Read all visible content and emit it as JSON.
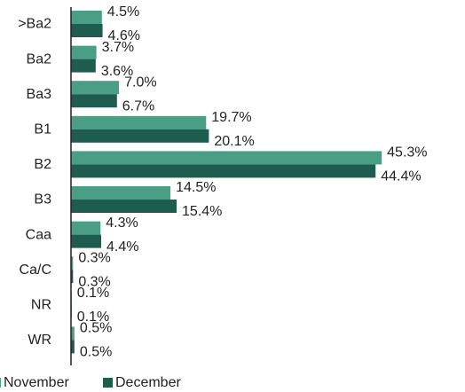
{
  "chart_data": {
    "type": "bar",
    "orientation": "horizontal",
    "categories": [
      ">Ba2",
      "Ba2",
      "Ba3",
      "B1",
      "B2",
      "B3",
      "Caa",
      "Ca/C",
      "NR",
      "WR"
    ],
    "series": [
      {
        "name": "November",
        "color": "#4a9e86",
        "values": [
          4.5,
          3.7,
          7.0,
          19.7,
          45.3,
          14.5,
          4.3,
          0.3,
          0.1,
          0.5
        ],
        "value_labels": [
          "4.5%",
          "3.7%",
          "7.0%",
          "19.7%",
          "45.3%",
          "14.5%",
          "4.3%",
          "0.3%",
          "0.1%",
          "0.5%"
        ]
      },
      {
        "name": "December",
        "color": "#1e5c50",
        "values": [
          4.6,
          3.6,
          6.7,
          20.1,
          44.4,
          15.4,
          4.4,
          0.3,
          0.1,
          0.5
        ],
        "value_labels": [
          "4.6%",
          "3.6%",
          "6.7%",
          "20.1%",
          "44.4%",
          "15.4%",
          "4.4%",
          "0.3%",
          "0.1%",
          "0.5%"
        ]
      }
    ],
    "legend": "bottom"
  }
}
